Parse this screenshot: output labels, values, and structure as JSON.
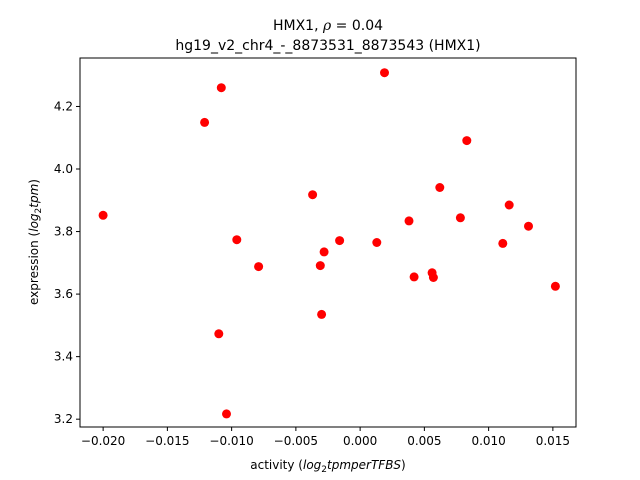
{
  "chart_data": {
    "type": "scatter",
    "title_prefix": "HMX1, ",
    "title_rho_symbol": "ρ",
    "title_rho_value": " = 0.04",
    "subtitle": "hg19_v2_chr4_-_8873531_8873543 (HMX1)",
    "xlabel_prefix": "activity (",
    "xlabel_math": "log",
    "xlabel_sub": "2",
    "xlabel_rest": "tpmperTFBS",
    "xlabel_suffix": ")",
    "ylabel_prefix": "expression (",
    "ylabel_math": "log",
    "ylabel_sub": "2",
    "ylabel_rest": "tpm",
    "ylabel_suffix": ")",
    "xlim": [
      -0.0218,
      0.0168
    ],
    "ylim": [
      3.175,
      4.355
    ],
    "xticks": [
      -0.02,
      -0.015,
      -0.01,
      -0.005,
      0.0,
      0.005,
      0.01,
      0.015
    ],
    "xtick_labels": [
      "−0.020",
      "−0.015",
      "−0.010",
      "−0.005",
      "0.000",
      "0.005",
      "0.010",
      "0.015"
    ],
    "yticks": [
      3.2,
      3.4,
      3.6,
      3.8,
      4.0,
      4.2
    ],
    "ytick_labels": [
      "3.2",
      "3.4",
      "3.6",
      "3.8",
      "4.0",
      "4.2"
    ],
    "grid": false,
    "marker_color": "#ff0000",
    "points": [
      {
        "x": -0.02,
        "y": 3.852
      },
      {
        "x": -0.0121,
        "y": 4.149
      },
      {
        "x": -0.0108,
        "y": 4.26
      },
      {
        "x": -0.011,
        "y": 3.473
      },
      {
        "x": -0.0104,
        "y": 3.217
      },
      {
        "x": -0.0096,
        "y": 3.774
      },
      {
        "x": -0.0079,
        "y": 3.688
      },
      {
        "x": -0.0037,
        "y": 3.918
      },
      {
        "x": -0.0031,
        "y": 3.691
      },
      {
        "x": -0.0028,
        "y": 3.735
      },
      {
        "x": -0.003,
        "y": 3.535
      },
      {
        "x": -0.0016,
        "y": 3.771
      },
      {
        "x": 0.0013,
        "y": 3.765
      },
      {
        "x": 0.0019,
        "y": 4.308
      },
      {
        "x": 0.0038,
        "y": 3.834
      },
      {
        "x": 0.0042,
        "y": 3.655
      },
      {
        "x": 0.0056,
        "y": 3.668
      },
      {
        "x": 0.0057,
        "y": 3.653
      },
      {
        "x": 0.0062,
        "y": 3.941
      },
      {
        "x": 0.0078,
        "y": 3.844
      },
      {
        "x": 0.0083,
        "y": 4.091
      },
      {
        "x": 0.0111,
        "y": 3.762
      },
      {
        "x": 0.0116,
        "y": 3.885
      },
      {
        "x": 0.0131,
        "y": 3.817
      },
      {
        "x": 0.0152,
        "y": 3.625
      }
    ]
  }
}
